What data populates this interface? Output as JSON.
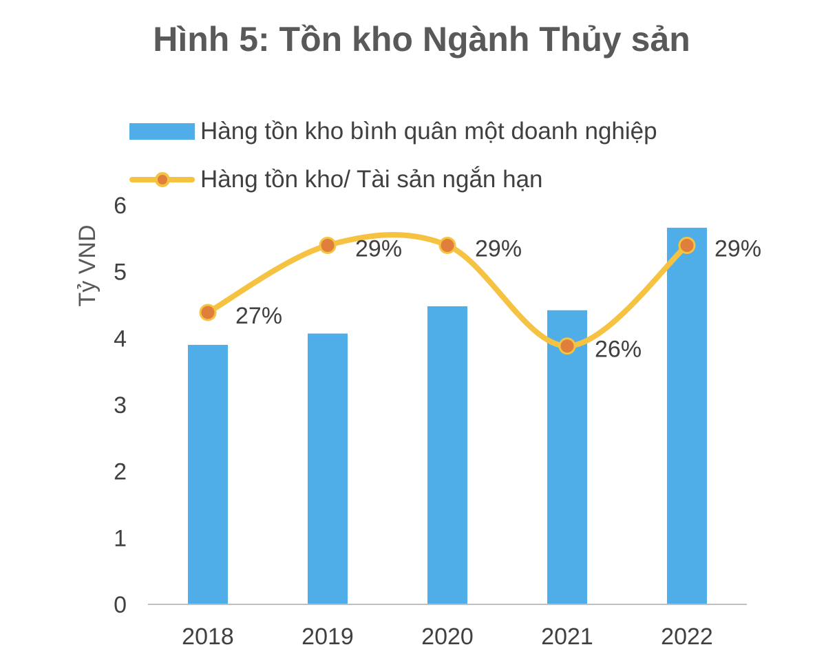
{
  "title": "Hình 5: Tồn kho Ngành Thủy sản",
  "legend": {
    "bar_label": "Hàng tồn kho bình quân một doanh nghiệp",
    "line_label": "Hàng tồn kho/ Tài sản ngắn hạn"
  },
  "colors": {
    "bar": "#4FADE8",
    "line": "#F5C242",
    "marker": "#E07F3C",
    "axis": "#BFBFBF",
    "text": "#404040"
  },
  "chart_data": {
    "type": "bar",
    "title": "Hình 5: Tồn kho Ngành Thủy sản",
    "ylabel": "Tỷ VND",
    "xlabel": "",
    "categories": [
      "2018",
      "2019",
      "2020",
      "2021",
      "2022"
    ],
    "ylim": [
      0,
      6
    ],
    "yticks": [
      "0",
      "1",
      "2",
      "3",
      "4",
      "5",
      "6"
    ],
    "grid": false,
    "legend_position": "top-left",
    "series": [
      {
        "name": "Hàng tồn kho bình quân một doanh nghiệp",
        "type": "bar",
        "axis": "left",
        "values": [
          3.9,
          4.07,
          4.48,
          4.42,
          5.66
        ]
      },
      {
        "name": "Hàng tồn kho/ Tài sản ngắn hạn",
        "type": "line",
        "axis": "secondary (hidden)",
        "smooth": true,
        "values": [
          27,
          29,
          29,
          26,
          29
        ],
        "labels": [
          "27%",
          "29%",
          "29%",
          "26%",
          "29%"
        ]
      }
    ]
  }
}
